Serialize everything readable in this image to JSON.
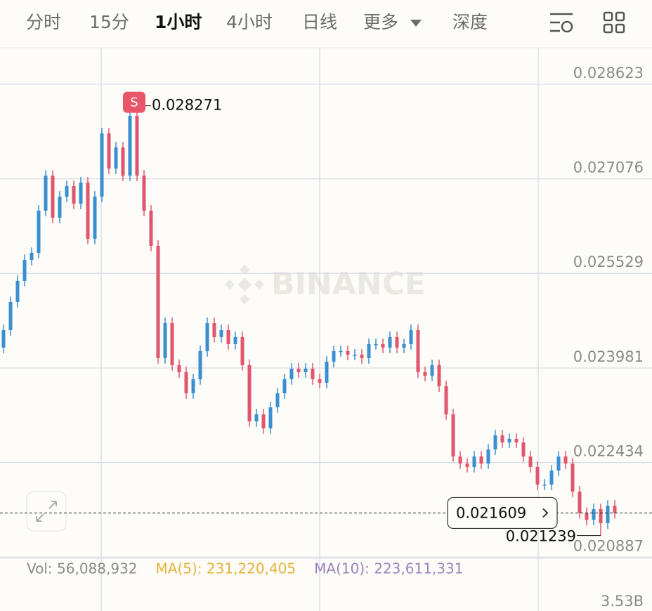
{
  "header": {
    "tabs": [
      "分时",
      "15分",
      "1小时",
      "4小时",
      "日线",
      "更多",
      "深度"
    ]
  },
  "chart_data": {
    "type": "candlestick",
    "watermark": "BINANCE",
    "up_color": "#3a8fd0",
    "down_color": "#e0566d",
    "ylim": [
      0.020867,
      0.02922
    ],
    "yticks": [
      0.028623,
      0.027076,
      0.025529,
      0.023981,
      0.022434,
      0.020887
    ],
    "grid": true,
    "high_badge": "S",
    "last_price": 0.021609,
    "open": [
      0.024314,
      0.024601,
      0.025061,
      0.025406,
      0.02575,
      0.025865,
      0.026555,
      0.027129,
      0.02644,
      0.026785,
      0.026957,
      0.02667,
      0.027014,
      0.026095,
      0.026785,
      0.027819,
      0.027244,
      0.027589,
      0.027129,
      0.028106,
      0.027129,
      0.026555,
      0.02598,
      0.024142,
      0.024716,
      0.024027,
      0.023912,
      0.023567,
      0.023797,
      0.024257,
      0.024716,
      0.024487,
      0.024601,
      0.024372,
      0.024487,
      0.024027,
      0.023108,
      0.023223,
      0.022993,
      0.023338,
      0.023567,
      0.023797,
      0.02397,
      0.023912,
      0.02397,
      0.023797,
      0.02374,
      0.024084,
      0.024257,
      0.024257,
      0.024199,
      0.024199,
      0.024142,
      0.024372,
      0.024372,
      0.024314,
      0.024487,
      0.024314,
      0.024372,
      0.024601,
      0.023912,
      0.023855,
      0.024027,
      0.023682,
      0.023223,
      0.022533,
      0.022418,
      0.022361,
      0.022533,
      0.022418,
      0.022648,
      0.022878,
      0.022763,
      0.022821,
      0.022763,
      0.022533,
      0.022361,
      0.022074,
      0.022074,
      0.022303,
      0.022533,
      0.022418,
      0.021959,
      0.021609,
      0.021499,
      0.021672,
      0.021442,
      0.021729
    ],
    "close": [
      0.024601,
      0.025061,
      0.025406,
      0.02575,
      0.025865,
      0.026555,
      0.027129,
      0.02644,
      0.026785,
      0.026957,
      0.02667,
      0.027014,
      0.026095,
      0.026785,
      0.027819,
      0.027244,
      0.027589,
      0.027129,
      0.028106,
      0.027129,
      0.026555,
      0.02598,
      0.024142,
      0.024716,
      0.024027,
      0.023912,
      0.023567,
      0.023797,
      0.024257,
      0.024716,
      0.024487,
      0.024601,
      0.024372,
      0.024487,
      0.024027,
      0.023108,
      0.023223,
      0.022993,
      0.023338,
      0.023567,
      0.023797,
      0.02397,
      0.023912,
      0.02397,
      0.023797,
      0.02374,
      0.024084,
      0.024257,
      0.024257,
      0.024199,
      0.024199,
      0.024142,
      0.024372,
      0.024372,
      0.024314,
      0.024487,
      0.024314,
      0.024372,
      0.024601,
      0.023912,
      0.023855,
      0.024027,
      0.023682,
      0.023223,
      0.022533,
      0.022418,
      0.022361,
      0.022533,
      0.022418,
      0.022648,
      0.022878,
      0.022763,
      0.022821,
      0.022763,
      0.022533,
      0.022361,
      0.022074,
      0.022074,
      0.022303,
      0.022533,
      0.022418,
      0.021959,
      0.021609,
      0.021499,
      0.021672,
      0.021442,
      0.021729,
      0.021609
    ],
    "high": [
      0.024691,
      0.025151,
      0.025496,
      0.02584,
      0.025955,
      0.026645,
      0.027219,
      0.027219,
      0.026875,
      0.027047,
      0.027047,
      0.027104,
      0.027104,
      0.026875,
      0.027909,
      0.027909,
      0.027679,
      0.027679,
      0.028271,
      0.028196,
      0.027219,
      0.026645,
      0.02607,
      0.024806,
      0.024806,
      0.024117,
      0.024002,
      0.023887,
      0.024347,
      0.024806,
      0.024806,
      0.024691,
      0.024691,
      0.024577,
      0.024577,
      0.024117,
      0.023313,
      0.023313,
      0.023428,
      0.023657,
      0.023887,
      0.02406,
      0.02406,
      0.02406,
      0.02406,
      0.023887,
      0.024174,
      0.024347,
      0.024347,
      0.024347,
      0.024289,
      0.024289,
      0.024462,
      0.024462,
      0.024462,
      0.024577,
      0.024577,
      0.024462,
      0.024691,
      0.024691,
      0.024002,
      0.024117,
      0.024117,
      0.023772,
      0.023313,
      0.022623,
      0.022508,
      0.022623,
      0.022623,
      0.022738,
      0.022968,
      0.022968,
      0.022911,
      0.022911,
      0.022853,
      0.022623,
      0.022451,
      0.022164,
      0.022393,
      0.022623,
      0.022623,
      0.022508,
      0.022049,
      0.021699,
      0.021762,
      0.021762,
      0.021819,
      0.021819
    ],
    "low": [
      0.024224,
      0.024511,
      0.024971,
      0.025316,
      0.02566,
      0.025775,
      0.026465,
      0.02635,
      0.02635,
      0.026695,
      0.02658,
      0.02658,
      0.026005,
      0.026005,
      0.026695,
      0.027154,
      0.027154,
      0.027039,
      0.027039,
      0.027039,
      0.026465,
      0.02589,
      0.024052,
      0.024052,
      0.023937,
      0.023822,
      0.023477,
      0.023477,
      0.023707,
      0.024167,
      0.024397,
      0.024397,
      0.024282,
      0.024282,
      0.023937,
      0.023018,
      0.023018,
      0.022903,
      0.022903,
      0.023248,
      0.023477,
      0.023707,
      0.023822,
      0.023822,
      0.023707,
      0.02365,
      0.02365,
      0.023994,
      0.024167,
      0.024109,
      0.024109,
      0.024052,
      0.024052,
      0.024282,
      0.024224,
      0.024224,
      0.024224,
      0.024224,
      0.024282,
      0.023822,
      0.023765,
      0.023765,
      0.023592,
      0.023133,
      0.022443,
      0.022328,
      0.022271,
      0.022271,
      0.022328,
      0.022328,
      0.022558,
      0.022673,
      0.022673,
      0.022673,
      0.022443,
      0.022271,
      0.021984,
      0.021984,
      0.021984,
      0.022213,
      0.022328,
      0.021869,
      0.021519,
      0.021409,
      0.021409,
      0.021239,
      0.021352,
      0.021519
    ],
    "volume_legend": [
      {
        "text": "Vol: 56,088,932",
        "color": "#8a8a8a"
      },
      {
        "text": "MA(5): 231,220,405",
        "color": "#e3b33a"
      },
      {
        "text": "MA(10): 223,611,331",
        "color": "#9b82bd"
      }
    ],
    "volume_axis_label": "3.53B"
  }
}
